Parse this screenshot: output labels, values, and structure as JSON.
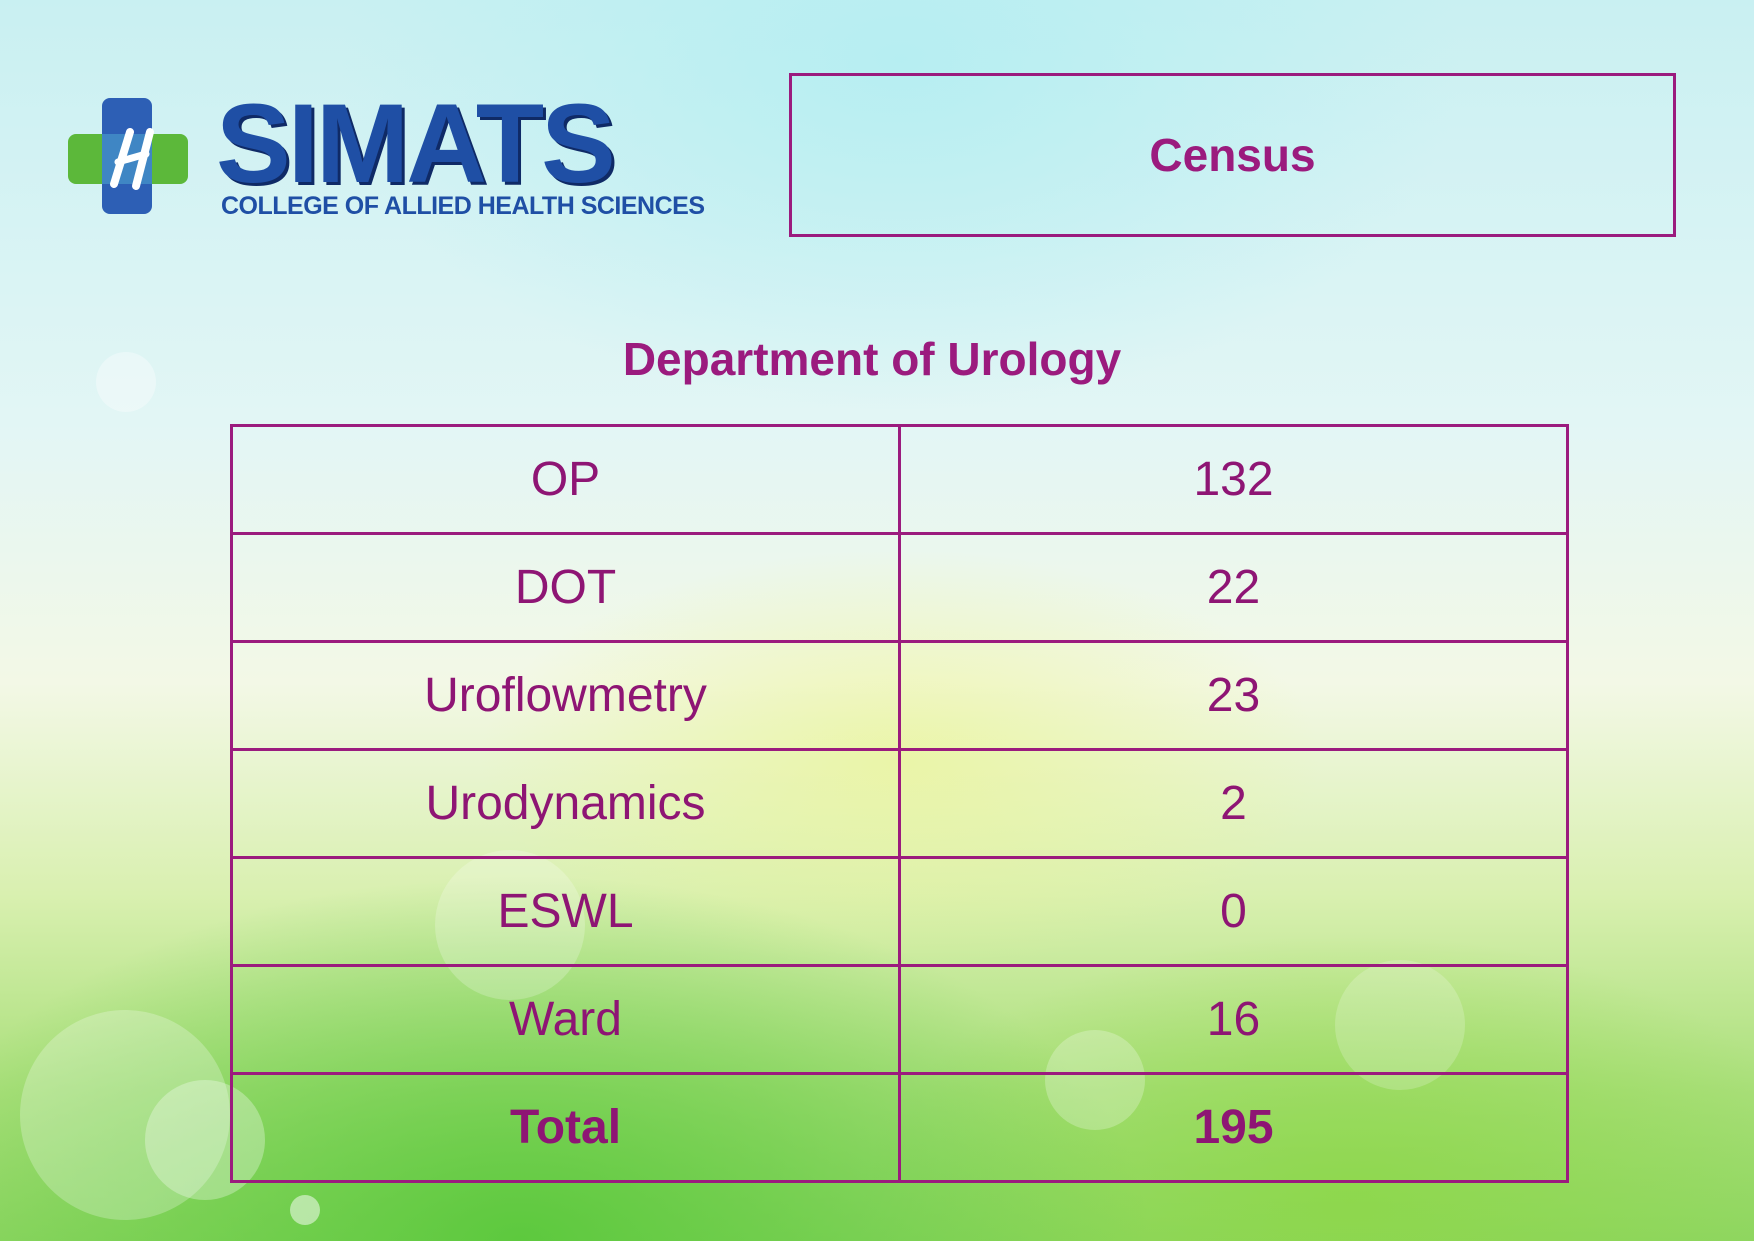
{
  "logo": {
    "name": "SIMATS",
    "subtitle": "COLLEGE OF ALLIED HEALTH SCIENCES"
  },
  "header": {
    "census_label": "Census"
  },
  "department": {
    "title": "Department of Urology"
  },
  "table": {
    "rows": [
      {
        "label": "OP",
        "value": "132"
      },
      {
        "label": "DOT",
        "value": "22"
      },
      {
        "label": "Uroflowmetry",
        "value": "23"
      },
      {
        "label": "Urodynamics",
        "value": "2"
      },
      {
        "label": "ESWL",
        "value": "0"
      },
      {
        "label": "Ward",
        "value": "16"
      }
    ],
    "total": {
      "label": "Total",
      "value": "195"
    }
  },
  "colors": {
    "accent": "#9b1b7e",
    "logo_blue": "#1f4fa5",
    "logo_green": "#5cb83a"
  }
}
